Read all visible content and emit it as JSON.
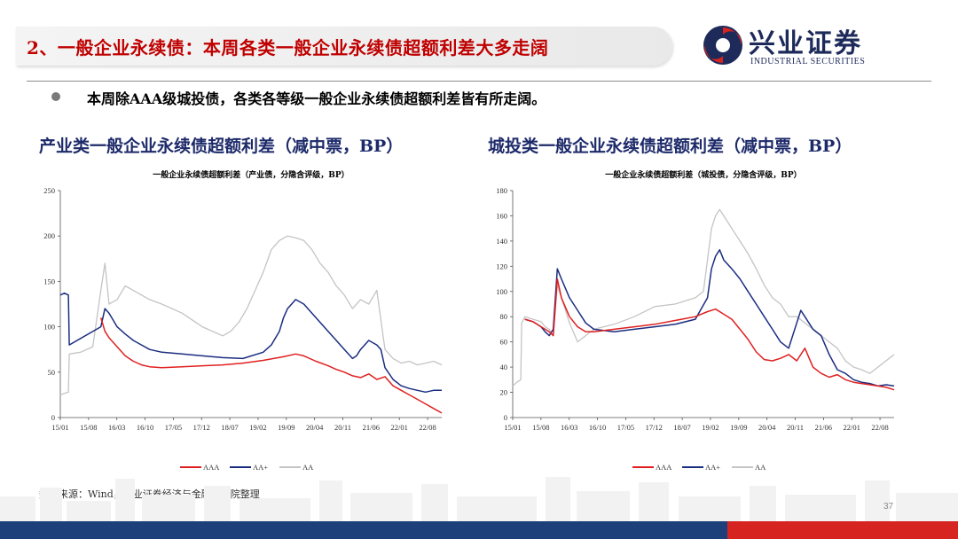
{
  "header": {
    "title": "2、一般企业永续债：本周各类一般企业永续债超额利差大多走阔"
  },
  "logo": {
    "cn": "兴业证券",
    "en": "INDUSTRIAL SECURITIES"
  },
  "bullet": {
    "text": "本周除AAA级城投债，各类各等级一般企业永续债超额利差皆有所走阔。"
  },
  "left_section_title": "产业类一般企业永续债超额利差（减中票，BP）",
  "right_section_title": "城投类一般企业永续债超额利差（减中票，BP）",
  "source": "数据来源：Wind，兴业证券经济与金融研究院整理",
  "page_number": "37",
  "colors": {
    "AAA": "#e02020",
    "AA+": "#1a2d80",
    "AA": "#c4c4c4",
    "title_red": "#c00000",
    "navy": "#1d2a6a"
  },
  "chart_data": [
    {
      "type": "line",
      "title": "一般企业永续债超额利差（产业债，分隐含评级，BP）",
      "ylim": [
        0,
        250
      ],
      "yticks": [
        "0",
        "50",
        "100",
        "150",
        "200",
        "250"
      ],
      "xticks": [
        "15/01",
        "15/08",
        "16/03",
        "16/10",
        "17/05",
        "17/12",
        "18/07",
        "19/02",
        "19/09",
        "20/04",
        "20/11",
        "21/06",
        "22/01",
        "22/08"
      ],
      "xlim": [
        0,
        94
      ],
      "series": [
        {
          "name": "AAA",
          "x": [
            10,
            11,
            12,
            14,
            16,
            18,
            20,
            22,
            25,
            30,
            35,
            40,
            45,
            50,
            55,
            58,
            60,
            63,
            66,
            68,
            70,
            72,
            74,
            76,
            78,
            80,
            82,
            84,
            86,
            88,
            90,
            92,
            94
          ],
          "y": [
            110,
            95,
            88,
            78,
            68,
            62,
            58,
            56,
            55,
            56,
            57,
            58,
            60,
            63,
            67,
            70,
            68,
            62,
            57,
            53,
            50,
            46,
            44,
            48,
            42,
            45,
            35,
            30,
            25,
            20,
            15,
            10,
            5
          ]
        },
        {
          "name": "AA+",
          "x": [
            0,
            1,
            2,
            2.2,
            10,
            11,
            12,
            14,
            16,
            18,
            20,
            22,
            25,
            30,
            35,
            40,
            45,
            50,
            52,
            54,
            55,
            56,
            58,
            60,
            63,
            66,
            68,
            70,
            71,
            72,
            73,
            74,
            76,
            78,
            79,
            80,
            82,
            84,
            86,
            88,
            90,
            92,
            94
          ],
          "y": [
            135,
            137,
            135,
            80,
            100,
            120,
            115,
            100,
            92,
            85,
            80,
            75,
            72,
            70,
            68,
            66,
            65,
            72,
            80,
            95,
            110,
            120,
            130,
            125,
            110,
            95,
            85,
            75,
            70,
            65,
            68,
            75,
            85,
            80,
            75,
            55,
            42,
            35,
            32,
            30,
            28,
            30,
            30
          ]
        },
        {
          "name": "AA",
          "x": [
            0,
            2,
            2.2,
            5,
            8,
            10,
            11,
            12,
            14,
            16,
            18,
            20,
            22,
            25,
            30,
            35,
            40,
            42,
            44,
            46,
            48,
            50,
            52,
            54,
            56,
            58,
            60,
            62,
            64,
            66,
            68,
            70,
            72,
            74,
            76,
            78,
            80,
            82,
            84,
            86,
            88,
            90,
            92,
            94
          ],
          "y": [
            25,
            28,
            70,
            72,
            78,
            140,
            170,
            125,
            130,
            145,
            140,
            135,
            130,
            125,
            115,
            100,
            90,
            95,
            105,
            120,
            140,
            160,
            185,
            195,
            200,
            198,
            195,
            185,
            170,
            160,
            145,
            135,
            120,
            130,
            125,
            140,
            75,
            65,
            60,
            62,
            58,
            60,
            62,
            58
          ]
        }
      ]
    },
    {
      "type": "line",
      "title": "一般企业永续债超额利差（城投债，分隐含评级，BP）",
      "ylim": [
        0,
        180
      ],
      "yticks": [
        "0",
        "20",
        "40",
        "60",
        "80",
        "100",
        "120",
        "140",
        "160",
        "180"
      ],
      "xticks": [
        "15/01",
        "15/08",
        "16/03",
        "16/10",
        "17/05",
        "17/12",
        "18/07",
        "19/02",
        "19/09",
        "20/04",
        "20/11",
        "21/06",
        "22/01",
        "22/08"
      ],
      "xlim": [
        0,
        94
      ],
      "series": [
        {
          "name": "AAA",
          "x": [
            3,
            5,
            7,
            8,
            9,
            10,
            11,
            12,
            14,
            16,
            18,
            20,
            25,
            30,
            35,
            40,
            45,
            48,
            50,
            52,
            54,
            56,
            58,
            60,
            62,
            64,
            66,
            68,
            70,
            72,
            74,
            76,
            78,
            80,
            82,
            84,
            86,
            88,
            90,
            92,
            94
          ],
          "y": [
            78,
            76,
            72,
            70,
            68,
            65,
            110,
            95,
            80,
            72,
            68,
            68,
            70,
            72,
            74,
            77,
            80,
            84,
            86,
            82,
            78,
            70,
            62,
            52,
            46,
            45,
            47,
            50,
            45,
            55,
            40,
            35,
            32,
            34,
            30,
            28,
            27,
            26,
            25,
            24,
            22
          ]
        },
        {
          "name": "AA+",
          "x": [
            3,
            5,
            7,
            8,
            9,
            10,
            11,
            12,
            14,
            16,
            18,
            20,
            25,
            30,
            35,
            40,
            45,
            48,
            49,
            50,
            51,
            52,
            54,
            56,
            58,
            60,
            62,
            64,
            66,
            68,
            70,
            71,
            72,
            74,
            76,
            78,
            80,
            82,
            84,
            86,
            88,
            90,
            92,
            94
          ],
          "y": [
            78,
            76,
            72,
            68,
            65,
            70,
            118,
            110,
            95,
            85,
            75,
            70,
            68,
            70,
            72,
            74,
            78,
            95,
            118,
            128,
            133,
            125,
            118,
            110,
            100,
            90,
            80,
            70,
            60,
            55,
            75,
            85,
            80,
            70,
            65,
            50,
            38,
            35,
            30,
            28,
            27,
            25,
            26,
            25
          ]
        },
        {
          "name": "AA",
          "x": [
            0,
            1,
            2,
            2.2,
            3,
            5,
            7,
            8,
            9,
            10,
            11,
            12,
            14,
            16,
            18,
            20,
            25,
            30,
            35,
            40,
            45,
            47,
            48,
            49,
            50,
            51,
            52,
            54,
            56,
            58,
            60,
            62,
            64,
            66,
            68,
            70,
            72,
            74,
            76,
            78,
            80,
            82,
            84,
            86,
            88,
            90,
            92,
            94
          ],
          "y": [
            25,
            28,
            30,
            75,
            80,
            78,
            76,
            72,
            70,
            65,
            105,
            95,
            75,
            60,
            65,
            70,
            74,
            80,
            88,
            90,
            95,
            100,
            125,
            150,
            160,
            165,
            160,
            150,
            140,
            130,
            118,
            105,
            95,
            90,
            80,
            80,
            75,
            70,
            65,
            60,
            55,
            45,
            40,
            38,
            35,
            40,
            45,
            50
          ]
        }
      ]
    }
  ]
}
